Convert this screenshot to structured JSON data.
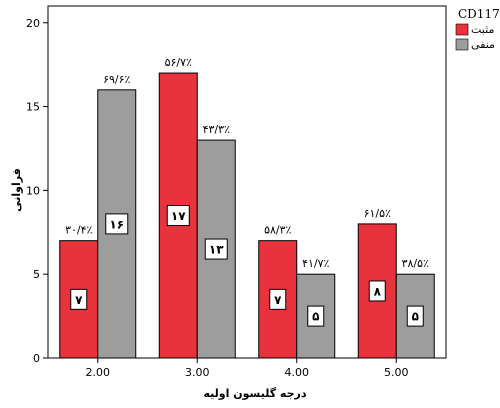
{
  "chart_data": {
    "type": "bar",
    "categories": [
      "2.00",
      "3.00",
      "4.00",
      "5.00"
    ],
    "xlabel": "درجه گلیسون اولیه",
    "ylabel": "فراوانی",
    "ylim": [
      0,
      21
    ],
    "yticks": [
      "0",
      "5",
      "10",
      "15",
      "20"
    ],
    "grid": false,
    "legend": {
      "title": "CD117",
      "placement": "top-right"
    },
    "series": [
      {
        "name": "مثبت",
        "color": "#e8333c",
        "values": [
          7,
          17,
          7,
          8
        ],
        "count_labels": [
          "۷",
          "۱۷",
          "۷",
          "۸"
        ],
        "percent_labels": [
          "۳۰/۴٪",
          "۵۶/۷٪",
          "۵۸/۳٪",
          "۶۱/۵٪"
        ]
      },
      {
        "name": "منفی",
        "color": "#9d9d9d",
        "values": [
          16,
          13,
          5,
          5
        ],
        "count_labels": [
          "۱۶",
          "۱۳",
          "۵",
          "۵"
        ],
        "percent_labels": [
          "۶۹/۶٪",
          "۴۳/۳٪",
          "۴۱/۷٪",
          "۳۸/۵٪"
        ]
      }
    ]
  }
}
